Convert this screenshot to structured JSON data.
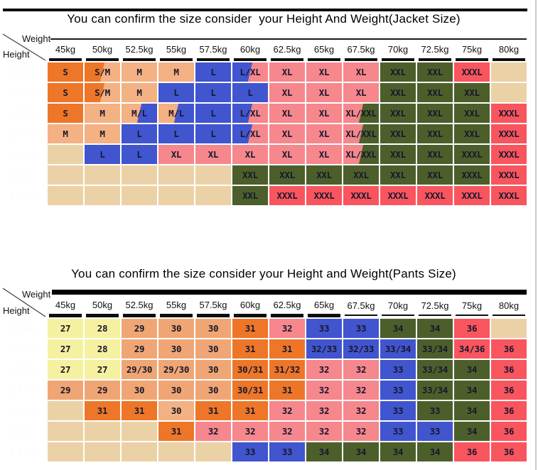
{
  "colors": {
    "orange": "#ED7628",
    "tan": "#F4B183",
    "tan2": "#F0A674",
    "yellow": "#F5F1A1",
    "blank": "#EBD2A6",
    "blue": "#4155CE",
    "pink": "#F5878D",
    "green": "#4C5F2B",
    "red": "#F8555F",
    "height_header_bg": "#6A7E84",
    "divider": "#0D0D0D",
    "right_border": "#C9C9CF"
  },
  "chart_data": [
    {
      "type": "table",
      "title": "You can confirm the size consider  your Height And Weight(Jacket Size)",
      "corner_labels": {
        "top": "Weight",
        "left": "Height"
      },
      "columns": [
        "45kg",
        "50kg",
        "52.5kg",
        "55kg",
        "57.5kg",
        "60kg",
        "62.5kg",
        "65kg",
        "67.5kg",
        "70kg",
        "72.5kg",
        "75kg",
        "80kg"
      ],
      "row_headers": [
        "160cm",
        "165cm",
        "170cm",
        "175cm",
        "178cm",
        "182cm",
        "185cm"
      ],
      "rows": [
        [
          "S",
          "S/M",
          "M",
          "M",
          "L",
          "L/XL",
          "XL",
          "XL",
          "XL",
          "XXL",
          "XXL",
          "XXXL",
          ""
        ],
        [
          "S",
          "S/M",
          "M",
          "L",
          "L",
          "L",
          "XL",
          "XL",
          "XL",
          "XXL",
          "XXL",
          "XXL",
          ""
        ],
        [
          "S",
          "M",
          "M/L",
          "M/L",
          "L",
          "L/XL",
          "XL",
          "XL",
          "XL/XXL",
          "XXL",
          "XXL",
          "XXL",
          "XXXL"
        ],
        [
          "M",
          "M",
          "L",
          "L",
          "L",
          "L/XL",
          "XL",
          "XL",
          "XL/XXL",
          "XXL",
          "XXL",
          "XXL",
          "XXXL"
        ],
        [
          "",
          "L",
          "L",
          "XL",
          "XL",
          "XL",
          "XL",
          "XL",
          "XL/XXL",
          "XXL",
          "XXL",
          "XXXL",
          "XXXL"
        ],
        [
          "",
          "",
          "",
          "",
          "",
          "XXL",
          "XXL",
          "XXL",
          "XXL",
          "XXL",
          "XXL",
          "XXXL",
          "XXXL"
        ],
        [
          "",
          "",
          "",
          "",
          "",
          "XXL",
          "XXXL",
          "XXXL",
          "XXXL",
          "XXXL",
          "XXXL",
          "XXXL",
          "XXXL"
        ]
      ],
      "cell_colors": [
        [
          "orange",
          "orange|tan",
          "tan",
          "tan",
          "blue",
          "blue|pink",
          "pink",
          "pink",
          "pink",
          "green",
          "green",
          "red",
          "blank"
        ],
        [
          "orange",
          "orange|tan",
          "tan",
          "blue",
          "blue",
          "blue",
          "pink",
          "pink",
          "pink",
          "green",
          "green",
          "green",
          "blank"
        ],
        [
          "orange",
          "tan",
          "tan|blue",
          "tan|blue",
          "blue",
          "blue|pink",
          "pink",
          "pink",
          "pink|green",
          "green",
          "green",
          "green",
          "red"
        ],
        [
          "tan",
          "tan",
          "blue",
          "blue",
          "blue",
          "blue|pink",
          "pink",
          "pink",
          "pink|green",
          "green",
          "green",
          "green",
          "red"
        ],
        [
          "blank",
          "blue",
          "blue",
          "pink",
          "pink",
          "pink",
          "pink",
          "pink",
          "pink|green",
          "green",
          "green",
          "green",
          "red"
        ],
        [
          "blank",
          "blank",
          "blank",
          "blank",
          "blank",
          "green",
          "green",
          "green",
          "green",
          "green",
          "green",
          "green",
          "red"
        ],
        [
          "blank",
          "blank",
          "blank",
          "blank",
          "blank",
          "green",
          "red",
          "red",
          "red",
          "red",
          "red",
          "red",
          "red"
        ]
      ]
    },
    {
      "type": "table",
      "title": "You can confirm the size consider your Height and Weight(Pants Size)",
      "corner_labels": {
        "top": "Weight",
        "left": "Height"
      },
      "columns": [
        "45kg",
        "50kg",
        "52.5kg",
        "55kg",
        "57.5kg",
        "60kg",
        "62.5kg",
        "65kg",
        "67.5kg",
        "70kg",
        "72.5kg",
        "75kg",
        "80kg"
      ],
      "row_headers": [
        "160cm",
        "165cm",
        "170cm",
        "175cm",
        "178cm",
        "182cm",
        "185cm"
      ],
      "rows": [
        [
          "27",
          "28",
          "29",
          "30",
          "30",
          "31",
          "32",
          "33",
          "33",
          "34",
          "34",
          "36",
          ""
        ],
        [
          "27",
          "28",
          "29",
          "30",
          "30",
          "31",
          "31",
          "32/33",
          "32/33",
          "33/34",
          "33/34",
          "34/36",
          "36"
        ],
        [
          "27",
          "27",
          "29/30",
          "29/30",
          "30",
          "30/31",
          "31/32",
          "32",
          "32",
          "33",
          "33/34",
          "34",
          "36"
        ],
        [
          "29",
          "29",
          "30",
          "30",
          "30",
          "30/31",
          "31",
          "32",
          "32",
          "33",
          "33/34",
          "34",
          "36"
        ],
        [
          "",
          "31",
          "31",
          "30",
          "31",
          "31",
          "32",
          "32",
          "32",
          "33",
          "33",
          "34",
          "36"
        ],
        [
          "",
          "",
          "",
          "31",
          "32",
          "32",
          "32",
          "32",
          "32",
          "33",
          "33",
          "34",
          "36"
        ],
        [
          "",
          "",
          "",
          "",
          "",
          "33",
          "33",
          "34",
          "34",
          "34",
          "34",
          "36",
          "36"
        ]
      ],
      "cell_colors": [
        [
          "yellow",
          "yellow",
          "tan2",
          "tan2",
          "tan2",
          "orange",
          "pink",
          "blue",
          "blue",
          "green",
          "green",
          "red",
          "blank"
        ],
        [
          "yellow",
          "yellow",
          "tan2",
          "tan2",
          "tan2",
          "orange",
          "orange",
          "blue",
          "blue",
          "blue",
          "green",
          "red",
          "red"
        ],
        [
          "yellow",
          "yellow",
          "tan2",
          "tan2",
          "tan2",
          "orange",
          "orange",
          "pink",
          "pink",
          "blue",
          "green",
          "green",
          "red"
        ],
        [
          "tan2",
          "tan2",
          "tan2",
          "tan2",
          "tan2",
          "orange",
          "orange",
          "pink",
          "pink",
          "blue",
          "green",
          "green",
          "red"
        ],
        [
          "blank",
          "orange",
          "orange",
          "tan",
          "orange",
          "orange",
          "pink",
          "pink",
          "pink",
          "blue",
          "green",
          "green",
          "red"
        ],
        [
          "blank",
          "blank",
          "blank",
          "orange",
          "pink",
          "pink",
          "pink",
          "pink",
          "pink",
          "blue",
          "blue",
          "green",
          "red"
        ],
        [
          "blank",
          "blank",
          "blank",
          "blank",
          "blank",
          "blue",
          "blue",
          "green",
          "green",
          "green",
          "green",
          "red",
          "red"
        ]
      ]
    }
  ]
}
